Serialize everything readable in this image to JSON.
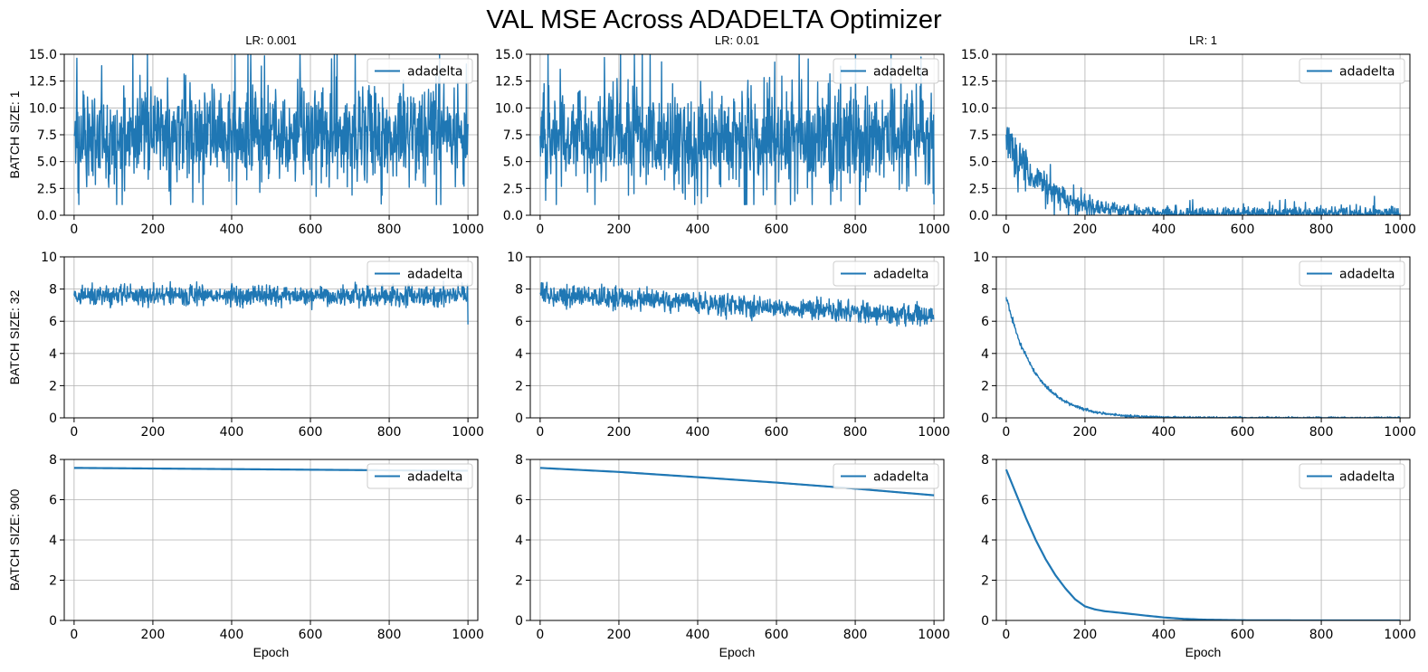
{
  "title": "VAL MSE Across ADADELTA Optimizer",
  "colors": {
    "series": "#1f77b4",
    "grid": "#b0b0b0",
    "axis": "#000000"
  },
  "chart_data": [
    {
      "type": "line",
      "row": 0,
      "col": 0,
      "title": "LR: 0.001",
      "ylabel": "BATCH SIZE: 1",
      "xlabel": "",
      "xlim": [
        -25,
        1025
      ],
      "ylim": [
        0,
        15
      ],
      "xticks": [
        0,
        200,
        400,
        600,
        800,
        1000
      ],
      "yticks": [
        0.0,
        2.5,
        5.0,
        7.5,
        10.0,
        12.5,
        15.0
      ],
      "ytick_labels": [
        "0.0",
        "2.5",
        "5.0",
        "7.5",
        "10.0",
        "12.5",
        "15.0"
      ],
      "grid": true,
      "legend": "top-right",
      "series": [
        {
          "name": "adadelta",
          "shape": "noisy",
          "n": 1000,
          "base_start": 7.6,
          "base_end": 7.6,
          "amp": 3.5,
          "min": 1.0,
          "max": 15.0,
          "spike": 0.06,
          "seed": 11,
          "points": [
            [
              0,
              7.4
            ],
            [
              100,
              8.0
            ],
            [
              200,
              7.2
            ],
            [
              300,
              8.3
            ],
            [
              400,
              7.4
            ],
            [
              500,
              8.1
            ],
            [
              600,
              7.0
            ],
            [
              700,
              7.3
            ],
            [
              800,
              7.8
            ],
            [
              900,
              7.6
            ],
            [
              1000,
              8.5
            ]
          ]
        }
      ]
    },
    {
      "type": "line",
      "row": 0,
      "col": 1,
      "title": "LR: 0.01",
      "ylabel": "",
      "xlabel": "",
      "xlim": [
        -25,
        1025
      ],
      "ylim": [
        0,
        15
      ],
      "xticks": [
        0,
        200,
        400,
        600,
        800,
        1000
      ],
      "yticks": [
        0.0,
        2.5,
        5.0,
        7.5,
        10.0,
        12.5,
        15.0
      ],
      "ytick_labels": [
        "0.0",
        "2.5",
        "5.0",
        "7.5",
        "10.0",
        "12.5",
        "15.0"
      ],
      "grid": true,
      "legend": "top-right",
      "series": [
        {
          "name": "adadelta",
          "shape": "noisy",
          "n": 1000,
          "base_start": 7.4,
          "base_end": 7.0,
          "amp": 3.5,
          "min": 1.0,
          "max": 15.0,
          "spike": 0.06,
          "seed": 23,
          "points": [
            [
              0,
              7.4
            ],
            [
              100,
              7.6
            ],
            [
              200,
              7.3
            ],
            [
              300,
              7.5
            ],
            [
              400,
              7.2
            ],
            [
              500,
              7.4
            ],
            [
              600,
              7.1
            ],
            [
              700,
              7.0
            ],
            [
              800,
              7.2
            ],
            [
              900,
              6.9
            ],
            [
              1000,
              1.0
            ]
          ]
        }
      ]
    },
    {
      "type": "line",
      "row": 0,
      "col": 2,
      "title": "LR: 1",
      "ylabel": "",
      "xlabel": "",
      "xlim": [
        -25,
        1025
      ],
      "ylim": [
        0,
        15
      ],
      "xticks": [
        0,
        200,
        400,
        600,
        800,
        1000
      ],
      "yticks": [
        0.0,
        2.5,
        5.0,
        7.5,
        10.0,
        12.5,
        15.0
      ],
      "ytick_labels": [
        "0.0",
        "2.5",
        "5.0",
        "7.5",
        "10.0",
        "12.5",
        "15.0"
      ],
      "grid": true,
      "legend": "top-right",
      "series": [
        {
          "name": "adadelta",
          "shape": "decay-noisy",
          "n": 1000,
          "start": 7.5,
          "end": 0.15,
          "tau": 90,
          "amp": 2.0,
          "min": 0.0,
          "max": 15.0,
          "spike": 0.05,
          "seed": 37,
          "points": [
            [
              0,
              7.5
            ],
            [
              50,
              5.0
            ],
            [
              100,
              3.0
            ],
            [
              200,
              1.0
            ],
            [
              300,
              0.5
            ],
            [
              400,
              0.35
            ],
            [
              600,
              0.25
            ],
            [
              800,
              0.2
            ],
            [
              1000,
              0.2
            ]
          ]
        }
      ]
    },
    {
      "type": "line",
      "row": 1,
      "col": 0,
      "title": "",
      "ylabel": "BATCH SIZE: 32",
      "xlabel": "",
      "xlim": [
        -25,
        1025
      ],
      "ylim": [
        0,
        10
      ],
      "xticks": [
        0,
        200,
        400,
        600,
        800,
        1000
      ],
      "yticks": [
        0,
        2,
        4,
        6,
        8,
        10
      ],
      "ytick_labels": [
        "0",
        "2",
        "4",
        "6",
        "8",
        "10"
      ],
      "grid": true,
      "legend": "top-right",
      "series": [
        {
          "name": "adadelta",
          "shape": "noisy",
          "n": 1000,
          "base_start": 7.6,
          "base_end": 7.6,
          "amp": 0.55,
          "min": 5.8,
          "max": 9.0,
          "spike": 0.0,
          "seed": 41,
          "points": [
            [
              0,
              7.6
            ],
            [
              200,
              7.6
            ],
            [
              400,
              7.6
            ],
            [
              600,
              7.6
            ],
            [
              800,
              7.6
            ],
            [
              1000,
              5.8
            ]
          ]
        }
      ]
    },
    {
      "type": "line",
      "row": 1,
      "col": 1,
      "title": "",
      "ylabel": "",
      "xlabel": "",
      "xlim": [
        -25,
        1025
      ],
      "ylim": [
        0,
        10
      ],
      "xticks": [
        0,
        200,
        400,
        600,
        800,
        1000
      ],
      "yticks": [
        0,
        2,
        4,
        6,
        8,
        10
      ],
      "ytick_labels": [
        "0",
        "2",
        "4",
        "6",
        "8",
        "10"
      ],
      "grid": true,
      "legend": "top-right",
      "series": [
        {
          "name": "adadelta",
          "shape": "noisy",
          "n": 1000,
          "base_start": 7.7,
          "base_end": 6.3,
          "amp": 0.55,
          "min": 5.4,
          "max": 8.7,
          "spike": 0.0,
          "seed": 53,
          "points": [
            [
              0,
              7.7
            ],
            [
              200,
              7.4
            ],
            [
              400,
              7.1
            ],
            [
              600,
              6.8
            ],
            [
              800,
              6.5
            ],
            [
              1000,
              6.2
            ]
          ]
        }
      ]
    },
    {
      "type": "line",
      "row": 1,
      "col": 2,
      "title": "",
      "ylabel": "",
      "xlabel": "",
      "xlim": [
        -25,
        1025
      ],
      "ylim": [
        0,
        10
      ],
      "xticks": [
        0,
        200,
        400,
        600,
        800,
        1000
      ],
      "yticks": [
        0,
        2,
        4,
        6,
        8,
        10
      ],
      "ytick_labels": [
        "0",
        "2",
        "4",
        "6",
        "8",
        "10"
      ],
      "grid": true,
      "legend": "top-right",
      "series": [
        {
          "name": "adadelta",
          "shape": "decay-noisy",
          "n": 1000,
          "start": 7.5,
          "end": 0.0,
          "tau": 75,
          "amp": 0.22,
          "min": 0.0,
          "max": 10.0,
          "spike": 0.0,
          "seed": 61,
          "points": [
            [
              0,
              7.5
            ],
            [
              50,
              4.8
            ],
            [
              100,
              2.8
            ],
            [
              150,
              1.4
            ],
            [
              200,
              0.7
            ],
            [
              300,
              0.4
            ],
            [
              400,
              0.3
            ],
            [
              600,
              0.1
            ],
            [
              800,
              0.05
            ],
            [
              1000,
              0.0
            ]
          ]
        }
      ]
    },
    {
      "type": "line",
      "row": 2,
      "col": 0,
      "title": "",
      "ylabel": "BATCH SIZE: 900",
      "xlabel": "Epoch",
      "xlim": [
        -25,
        1025
      ],
      "ylim": [
        0,
        8
      ],
      "xticks": [
        0,
        200,
        400,
        600,
        800,
        1000
      ],
      "yticks": [
        0,
        2,
        4,
        6,
        8
      ],
      "ytick_labels": [
        "0",
        "2",
        "4",
        "6",
        "8"
      ],
      "grid": true,
      "legend": "top-right",
      "series": [
        {
          "name": "adadelta",
          "shape": "smooth",
          "points": [
            [
              0,
              7.58
            ],
            [
              200,
              7.55
            ],
            [
              400,
              7.52
            ],
            [
              600,
              7.49
            ],
            [
              800,
              7.46
            ],
            [
              1000,
              7.44
            ]
          ]
        }
      ]
    },
    {
      "type": "line",
      "row": 2,
      "col": 1,
      "title": "",
      "ylabel": "",
      "xlabel": "Epoch",
      "xlim": [
        -25,
        1025
      ],
      "ylim": [
        0,
        8
      ],
      "xticks": [
        0,
        200,
        400,
        600,
        800,
        1000
      ],
      "yticks": [
        0,
        2,
        4,
        6,
        8
      ],
      "ytick_labels": [
        "0",
        "2",
        "4",
        "6",
        "8"
      ],
      "grid": true,
      "legend": "top-right",
      "series": [
        {
          "name": "adadelta",
          "shape": "smooth",
          "points": [
            [
              0,
              7.58
            ],
            [
              200,
              7.38
            ],
            [
              400,
              7.12
            ],
            [
              600,
              6.85
            ],
            [
              800,
              6.55
            ],
            [
              1000,
              6.22
            ]
          ]
        }
      ]
    },
    {
      "type": "line",
      "row": 2,
      "col": 2,
      "title": "",
      "ylabel": "",
      "xlabel": "Epoch",
      "xlim": [
        -25,
        1025
      ],
      "ylim": [
        0,
        8
      ],
      "xticks": [
        0,
        200,
        400,
        600,
        800,
        1000
      ],
      "yticks": [
        0,
        2,
        4,
        6,
        8
      ],
      "ytick_labels": [
        "0",
        "2",
        "4",
        "6",
        "8"
      ],
      "grid": true,
      "legend": "top-right",
      "series": [
        {
          "name": "adadelta",
          "shape": "smooth",
          "points": [
            [
              0,
              7.5
            ],
            [
              25,
              6.3
            ],
            [
              50,
              5.1
            ],
            [
              75,
              4.0
            ],
            [
              100,
              3.05
            ],
            [
              125,
              2.25
            ],
            [
              150,
              1.6
            ],
            [
              175,
              1.05
            ],
            [
              200,
              0.7
            ],
            [
              225,
              0.55
            ],
            [
              250,
              0.46
            ],
            [
              300,
              0.36
            ],
            [
              350,
              0.25
            ],
            [
              400,
              0.15
            ],
            [
              450,
              0.08
            ],
            [
              500,
              0.04
            ],
            [
              600,
              0.01
            ],
            [
              800,
              0.0
            ],
            [
              1000,
              0.0
            ]
          ]
        }
      ]
    }
  ]
}
